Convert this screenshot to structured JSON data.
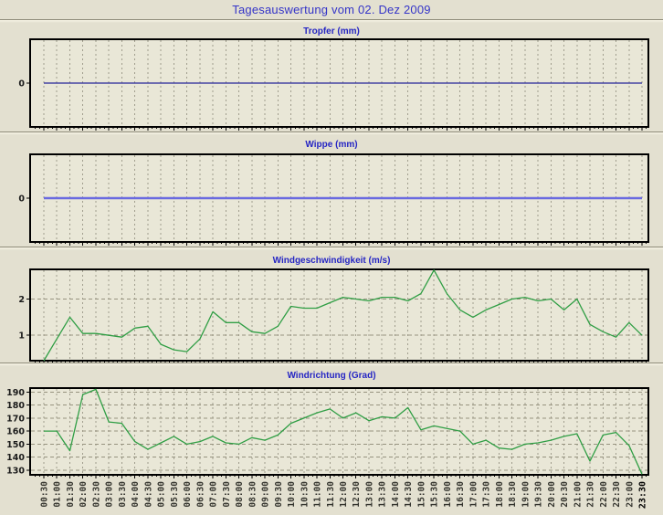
{
  "page": {
    "title": "Tagesauswertung vom 02. Dez 2009"
  },
  "colors": {
    "page_bg": "#e3e0d0",
    "plot_bg": "#e9e7d7",
    "title_blue": "#3434c8",
    "chart_title_blue": "#2626c4",
    "grid_vertical": "#a09d8d",
    "grid_horizontal": "#97937f",
    "plot_border": "#000000",
    "axis_text": "#1a1a1a",
    "tropfer_line": "#242499",
    "wippe_line": "#6a6ae0",
    "wind_line": "#2f9e44"
  },
  "chart_data": {
    "shared_categories": [
      "00:30",
      "01:00",
      "01:30",
      "02:00",
      "02:30",
      "03:00",
      "03:30",
      "04:00",
      "04:30",
      "05:00",
      "05:30",
      "06:00",
      "06:30",
      "07:00",
      "07:30",
      "08:00",
      "08:30",
      "09:00",
      "09:30",
      "10:00",
      "10:30",
      "11:00",
      "11:30",
      "12:00",
      "12:30",
      "13:00",
      "13:30",
      "14:00",
      "14:30",
      "15:00",
      "15:30",
      "16:00",
      "16:30",
      "17:00",
      "17:30",
      "18:00",
      "18:30",
      "19:00",
      "19:30",
      "20:00",
      "20:30",
      "21:00",
      "21:30",
      "22:00",
      "22:30",
      "23:00",
      "23:30"
    ],
    "x_labels_shown_on": "Windrichtung (Grad)",
    "last_x_label_bold": true,
    "charts": [
      {
        "type": "line",
        "title": "Tropfer (mm)",
        "ylabel": "mm",
        "color_key": "tropfer_line",
        "stroke_width": 1.2,
        "y_ticks": [
          0
        ],
        "ylim": [
          -1,
          1
        ],
        "h_grid": false,
        "show_x_labels": false,
        "values": [
          0,
          0,
          0,
          0,
          0,
          0,
          0,
          0,
          0,
          0,
          0,
          0,
          0,
          0,
          0,
          0,
          0,
          0,
          0,
          0,
          0,
          0,
          0,
          0,
          0,
          0,
          0,
          0,
          0,
          0,
          0,
          0,
          0,
          0,
          0,
          0,
          0,
          0,
          0,
          0,
          0,
          0,
          0,
          0,
          0,
          0,
          0
        ]
      },
      {
        "type": "line",
        "title": "Wippe (mm)",
        "ylabel": "mm",
        "color_key": "wippe_line",
        "stroke_width": 2.4,
        "y_ticks": [
          0
        ],
        "ylim": [
          -1,
          1
        ],
        "h_grid": false,
        "show_x_labels": false,
        "values": [
          0,
          0,
          0,
          0,
          0,
          0,
          0,
          0,
          0,
          0,
          0,
          0,
          0,
          0,
          0,
          0,
          0,
          0,
          0,
          0,
          0,
          0,
          0,
          0,
          0,
          0,
          0,
          0,
          0,
          0,
          0,
          0,
          0,
          0,
          0,
          0,
          0,
          0,
          0,
          0,
          0,
          0,
          0,
          0,
          0,
          0,
          0
        ]
      },
      {
        "type": "line",
        "title": "Windgeschwindigkeit (m/s)",
        "ylabel": "m/s",
        "color_key": "wind_line",
        "stroke_width": 1.3,
        "y_ticks": [
          1,
          2
        ],
        "ylim": [
          0.3,
          2.82
        ],
        "h_grid": true,
        "show_x_labels": false,
        "values": [
          0.3,
          0.9,
          1.5,
          1.05,
          1.05,
          1.0,
          0.95,
          1.2,
          1.25,
          0.75,
          0.6,
          0.55,
          0.9,
          1.65,
          1.35,
          1.35,
          1.1,
          1.05,
          1.25,
          1.8,
          1.75,
          1.75,
          1.9,
          2.05,
          2.0,
          1.95,
          2.05,
          2.05,
          1.95,
          2.15,
          2.8,
          2.15,
          1.7,
          1.5,
          1.7,
          1.85,
          2.0,
          2.05,
          1.95,
          2.0,
          1.7,
          2.0,
          1.3,
          1.1,
          0.95,
          1.35,
          1.0
        ]
      },
      {
        "type": "line",
        "title": "Windrichtung (Grad)",
        "ylabel": "Grad",
        "color_key": "wind_line",
        "stroke_width": 1.3,
        "y_ticks": [
          130,
          140,
          150,
          160,
          170,
          180,
          190
        ],
        "ylim": [
          126.5,
          193
        ],
        "h_grid": true,
        "show_x_labels": true,
        "values": [
          160,
          160,
          145,
          188,
          192,
          167,
          166,
          152,
          146,
          151,
          156,
          150,
          152,
          156,
          151,
          150,
          155,
          153,
          157,
          166,
          170,
          174,
          177,
          170,
          174,
          168,
          171,
          170,
          178,
          161,
          164,
          162,
          160,
          150,
          153,
          147,
          146,
          150,
          151,
          153,
          156,
          158,
          137,
          157,
          159,
          149,
          127
        ]
      }
    ]
  }
}
